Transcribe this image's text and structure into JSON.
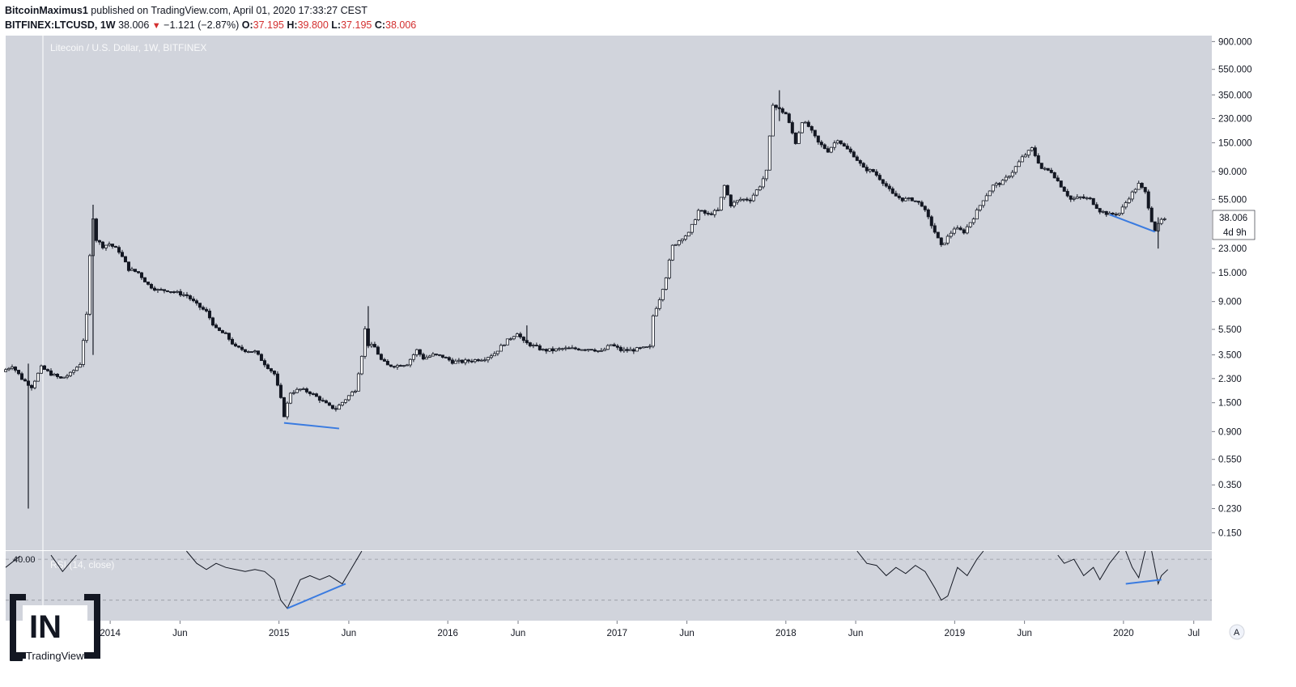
{
  "header": {
    "author": "BitcoinMaximus1",
    "published_text": " published on TradingView.com, April 01, 2020 17:33:27 CEST",
    "symbol": "BITFINEX:LTCUSD, 1W",
    "last": "38.006",
    "change": "−1.121 (−2.87%)",
    "o_label": "O:",
    "o_value": "37.195",
    "h_label": "H:",
    "h_value": "39.800",
    "l_label": "L:",
    "l_value": "37.195",
    "c_label": "C:",
    "c_value": "38.006"
  },
  "legend": "Litecoin / U.S. Dollar, 1W, BITFINEX",
  "rsi_legend": "RSI (14, close)",
  "rsi_level": "40.00",
  "price_badge": {
    "price": "38.006",
    "countdown": "4d 9h"
  },
  "axis_button": "A",
  "branding": {
    "logo_text": "IN",
    "tradingview": "TradingView"
  },
  "colors": {
    "background": "#d1d4dc",
    "candle": "#131722",
    "trendline": "#3a7be0",
    "badge_bg": "#ffffff"
  },
  "chart_data": {
    "type": "candlestick",
    "scale": "log",
    "ylim": [
      0.11,
      1000
    ],
    "y_ticks": [
      {
        "v": 900,
        "label": "900.000"
      },
      {
        "v": 550,
        "label": "550.000"
      },
      {
        "v": 350,
        "label": "350.000"
      },
      {
        "v": 230,
        "label": "230.000"
      },
      {
        "v": 150,
        "label": "150.000"
      },
      {
        "v": 90,
        "label": "90.000"
      },
      {
        "v": 55,
        "label": "55.000"
      },
      {
        "v": 23,
        "label": "23.000"
      },
      {
        "v": 15,
        "label": "15.000"
      },
      {
        "v": 9,
        "label": "9.000"
      },
      {
        "v": 5.5,
        "label": "5.500"
      },
      {
        "v": 3.5,
        "label": "3.500"
      },
      {
        "v": 2.3,
        "label": "2.300"
      },
      {
        "v": 1.5,
        "label": "1.500"
      },
      {
        "v": 0.9,
        "label": "0.900"
      },
      {
        "v": 0.55,
        "label": "0.550"
      },
      {
        "v": 0.35,
        "label": "0.350"
      },
      {
        "v": 0.23,
        "label": "0.230"
      },
      {
        "v": 0.15,
        "label": "0.150"
      }
    ],
    "x_range": [
      "2013-05-20",
      "2020-07-10"
    ],
    "x_ticks": [
      {
        "d": "2014-01-01",
        "label": "2014"
      },
      {
        "d": "2014-06-01",
        "label": "Jun"
      },
      {
        "d": "2015-01-01",
        "label": "2015"
      },
      {
        "d": "2015-06-01",
        "label": "Jun"
      },
      {
        "d": "2016-01-01",
        "label": "2016"
      },
      {
        "d": "2016-06-01",
        "label": "Jun"
      },
      {
        "d": "2017-01-01",
        "label": "2017"
      },
      {
        "d": "2017-06-01",
        "label": "Jun"
      },
      {
        "d": "2018-01-01",
        "label": "2018"
      },
      {
        "d": "2018-06-01",
        "label": "Jun"
      },
      {
        "d": "2019-01-01",
        "label": "2019"
      },
      {
        "d": "2019-06-01",
        "label": "Jun"
      },
      {
        "d": "2020-01-01",
        "label": "2020"
      },
      {
        "d": "2020-06-01",
        "label": "Jul"
      }
    ],
    "price_path": [
      [
        "2013-05-20",
        2.6
      ],
      [
        "2013-06-10",
        2.9
      ],
      [
        "2013-07-01",
        2.3
      ],
      [
        "2013-07-22",
        2.0
      ],
      [
        "2013-08-12",
        2.8
      ],
      [
        "2013-09-02",
        2.5
      ],
      [
        "2013-09-23",
        2.3
      ],
      [
        "2013-10-14",
        2.5
      ],
      [
        "2013-11-04",
        3.0
      ],
      [
        "2013-11-18",
        7.0
      ],
      [
        "2013-11-25",
        20
      ],
      [
        "2013-12-02",
        40
      ],
      [
        "2013-12-09",
        27
      ],
      [
        "2013-12-23",
        24
      ],
      [
        "2014-01-06",
        25
      ],
      [
        "2014-01-27",
        22
      ],
      [
        "2014-02-17",
        16
      ],
      [
        "2014-03-10",
        15
      ],
      [
        "2014-04-01",
        12
      ],
      [
        "2014-04-21",
        11
      ],
      [
        "2014-05-12",
        11
      ],
      [
        "2014-06-02",
        10.5
      ],
      [
        "2014-06-23",
        10
      ],
      [
        "2014-07-14",
        8.5
      ],
      [
        "2014-08-04",
        7.5
      ],
      [
        "2014-08-25",
        5.5
      ],
      [
        "2014-09-15",
        5.0
      ],
      [
        "2014-10-06",
        4.0
      ],
      [
        "2014-10-27",
        3.8
      ],
      [
        "2014-11-17",
        3.7
      ],
      [
        "2014-12-08",
        3.0
      ],
      [
        "2014-12-29",
        2.5
      ],
      [
        "2015-01-12",
        1.6
      ],
      [
        "2015-01-19",
        1.2
      ],
      [
        "2015-02-02",
        1.8
      ],
      [
        "2015-02-23",
        1.9
      ],
      [
        "2015-03-16",
        1.8
      ],
      [
        "2015-04-06",
        1.6
      ],
      [
        "2015-04-27",
        1.4
      ],
      [
        "2015-05-11",
        1.35
      ],
      [
        "2015-06-01",
        1.6
      ],
      [
        "2015-06-22",
        1.9
      ],
      [
        "2015-07-06",
        3.5
      ],
      [
        "2015-07-13",
        5.5
      ],
      [
        "2015-07-20",
        4.2
      ],
      [
        "2015-08-03",
        4.0
      ],
      [
        "2015-08-17",
        3.2
      ],
      [
        "2015-08-31",
        2.9
      ],
      [
        "2015-09-21",
        2.9
      ],
      [
        "2015-10-12",
        3.0
      ],
      [
        "2015-11-02",
        3.8
      ],
      [
        "2015-11-16",
        3.3
      ],
      [
        "2015-12-07",
        3.5
      ],
      [
        "2015-12-28",
        3.4
      ],
      [
        "2016-01-18",
        3.1
      ],
      [
        "2016-02-08",
        3.1
      ],
      [
        "2016-03-07",
        3.2
      ],
      [
        "2016-03-28",
        3.3
      ],
      [
        "2016-04-18",
        3.6
      ],
      [
        "2016-05-09",
        4.3
      ],
      [
        "2016-06-06",
        5.2
      ],
      [
        "2016-06-20",
        4.4
      ],
      [
        "2016-07-11",
        4.1
      ],
      [
        "2016-08-01",
        3.8
      ],
      [
        "2016-08-22",
        3.8
      ],
      [
        "2016-09-12",
        3.9
      ],
      [
        "2016-10-03",
        3.9
      ],
      [
        "2016-10-24",
        3.9
      ],
      [
        "2016-11-14",
        3.9
      ],
      [
        "2016-12-05",
        3.7
      ],
      [
        "2016-12-26",
        4.2
      ],
      [
        "2017-01-16",
        3.8
      ],
      [
        "2017-02-06",
        3.8
      ],
      [
        "2017-02-27",
        3.9
      ],
      [
        "2017-03-20",
        4.0
      ],
      [
        "2017-03-27",
        7.0
      ],
      [
        "2017-04-10",
        9.5
      ],
      [
        "2017-04-24",
        14
      ],
      [
        "2017-05-08",
        24
      ],
      [
        "2017-05-29",
        28
      ],
      [
        "2017-06-12",
        30
      ],
      [
        "2017-07-03",
        45
      ],
      [
        "2017-07-24",
        42
      ],
      [
        "2017-08-14",
        45
      ],
      [
        "2017-08-28",
        70
      ],
      [
        "2017-09-11",
        50
      ],
      [
        "2017-10-02",
        55
      ],
      [
        "2017-10-23",
        55
      ],
      [
        "2017-11-13",
        70
      ],
      [
        "2017-11-27",
        90
      ],
      [
        "2017-12-11",
        300
      ],
      [
        "2017-12-18",
        280
      ],
      [
        "2018-01-08",
        250
      ],
      [
        "2018-01-29",
        150
      ],
      [
        "2018-02-12",
        220
      ],
      [
        "2018-02-26",
        200
      ],
      [
        "2018-03-19",
        150
      ],
      [
        "2018-04-09",
        130
      ],
      [
        "2018-04-30",
        160
      ],
      [
        "2018-05-14",
        140
      ],
      [
        "2018-06-04",
        120
      ],
      [
        "2018-06-25",
        95
      ],
      [
        "2018-07-16",
        90
      ],
      [
        "2018-08-06",
        75
      ],
      [
        "2018-08-27",
        60
      ],
      [
        "2018-09-17",
        55
      ],
      [
        "2018-10-08",
        55
      ],
      [
        "2018-10-29",
        50
      ],
      [
        "2018-11-19",
        35
      ],
      [
        "2018-12-10",
        24
      ],
      [
        "2019-01-07",
        33
      ],
      [
        "2019-01-28",
        31
      ],
      [
        "2019-02-18",
        40
      ],
      [
        "2019-03-11",
        55
      ],
      [
        "2019-04-01",
        70
      ],
      [
        "2019-04-22",
        75
      ],
      [
        "2019-05-13",
        90
      ],
      [
        "2019-06-03",
        115
      ],
      [
        "2019-06-24",
        135
      ],
      [
        "2019-07-15",
        95
      ],
      [
        "2019-08-05",
        90
      ],
      [
        "2019-08-26",
        70
      ],
      [
        "2019-09-16",
        55
      ],
      [
        "2019-10-07",
        57
      ],
      [
        "2019-10-28",
        55
      ],
      [
        "2019-11-18",
        45
      ],
      [
        "2019-12-09",
        42
      ],
      [
        "2019-12-30",
        43
      ],
      [
        "2020-01-20",
        57
      ],
      [
        "2020-02-10",
        72
      ],
      [
        "2020-02-24",
        62
      ],
      [
        "2020-03-09",
        38
      ],
      [
        "2020-03-16",
        32
      ],
      [
        "2020-03-30",
        38
      ]
    ],
    "spikes": [
      {
        "d": "2013-07-08",
        "high": 3.0,
        "low": 0.23
      },
      {
        "d": "2013-11-25",
        "high": 50,
        "low": 3.5
      },
      {
        "d": "2015-07-13",
        "high": 8.3,
        "low": 4.0
      },
      {
        "d": "2016-06-20",
        "high": 5.9,
        "low": 4.2
      },
      {
        "d": "2017-12-18",
        "high": 380,
        "low": 220
      },
      {
        "d": "2020-03-16",
        "high": 40,
        "low": 23
      }
    ],
    "rsi": {
      "name": "RSI (14, close)",
      "ylim": [
        25,
        42
      ],
      "level_lines": [
        {
          "v": 40,
          "label": "40.00"
        },
        {
          "v": 30
        }
      ],
      "segments": [
        [
          [
            "2013-05-20",
            38
          ],
          [
            "2013-06-20",
            40.8
          ]
        ],
        [
          [
            "2013-08-26",
            41
          ],
          [
            "2013-09-20",
            37
          ],
          [
            "2013-10-20",
            41
          ]
        ],
        [
          [
            "2014-06-15",
            42
          ],
          [
            "2014-07-07",
            39
          ],
          [
            "2014-07-28",
            37.5
          ],
          [
            "2014-08-18",
            39
          ],
          [
            "2014-09-08",
            38
          ],
          [
            "2014-09-29",
            37.5
          ],
          [
            "2014-10-20",
            37
          ],
          [
            "2014-11-10",
            37.5
          ],
          [
            "2014-12-01",
            37
          ],
          [
            "2014-12-22",
            35
          ],
          [
            "2015-01-05",
            30
          ],
          [
            "2015-01-19",
            28
          ],
          [
            "2015-02-16",
            35
          ],
          [
            "2015-03-09",
            36
          ],
          [
            "2015-03-30",
            35
          ],
          [
            "2015-04-20",
            36
          ],
          [
            "2015-05-18",
            34
          ],
          [
            "2015-06-08",
            38
          ],
          [
            "2015-06-29",
            42
          ]
        ],
        [
          [
            "2018-06-04",
            42
          ],
          [
            "2018-06-25",
            39
          ],
          [
            "2018-07-16",
            38.5
          ],
          [
            "2018-08-06",
            36
          ],
          [
            "2018-08-27",
            38
          ],
          [
            "2018-09-17",
            36.5
          ],
          [
            "2018-10-08",
            38.5
          ],
          [
            "2018-10-29",
            37
          ],
          [
            "2018-11-19",
            33
          ],
          [
            "2018-12-03",
            30
          ],
          [
            "2018-12-17",
            31
          ],
          [
            "2019-01-07",
            38
          ],
          [
            "2019-01-28",
            36
          ],
          [
            "2019-02-18",
            40
          ],
          [
            "2019-03-04",
            42
          ]
        ],
        [
          [
            "2019-08-12",
            41
          ],
          [
            "2019-08-26",
            39
          ],
          [
            "2019-09-16",
            40
          ],
          [
            "2019-10-07",
            36
          ],
          [
            "2019-10-28",
            38
          ],
          [
            "2019-11-11",
            35
          ],
          [
            "2019-12-02",
            39
          ],
          [
            "2019-12-23",
            42
          ]
        ],
        [
          [
            "2020-01-06",
            42
          ],
          [
            "2020-01-20",
            38
          ],
          [
            "2020-02-03",
            35.5
          ],
          [
            "2020-02-17",
            42
          ]
        ],
        [
          [
            "2020-03-02",
            42
          ],
          [
            "2020-03-16",
            34
          ],
          [
            "2020-03-23",
            36
          ],
          [
            "2020-04-06",
            37.5
          ]
        ]
      ]
    },
    "annotations": [
      {
        "type": "trendline",
        "pane": "price",
        "from": [
          "2015-01-12",
          1.05
        ],
        "to": [
          "2015-05-11",
          0.95
        ]
      },
      {
        "type": "trendline",
        "pane": "price",
        "from": [
          "2019-12-02",
          42
        ],
        "to": [
          "2020-03-09",
          31
        ]
      },
      {
        "type": "trendline",
        "pane": "rsi",
        "from": [
          "2015-01-19",
          28
        ],
        "to": [
          "2015-05-25",
          34
        ]
      },
      {
        "type": "trendline",
        "pane": "rsi",
        "from": [
          "2020-01-06",
          34
        ],
        "to": [
          "2020-03-23",
          35
        ]
      }
    ]
  }
}
